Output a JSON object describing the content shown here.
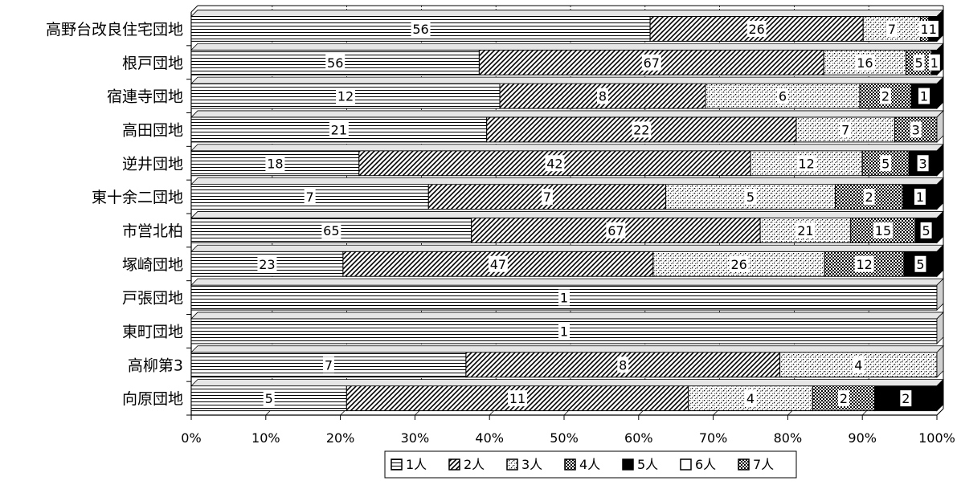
{
  "chart_data": {
    "type": "bar",
    "orientation": "horizontal",
    "stacked": "percent",
    "categories": [
      "高野台改良住宅団地",
      "根戸団地",
      "宿連寺団地",
      "高田団地",
      "逆井団地",
      "東十余二団地",
      "市営北柏",
      "塚崎団地",
      "戸張団地",
      "東町団地",
      "高柳第3",
      "向原団地"
    ],
    "series": [
      {
        "name": "1人",
        "values": [
          56,
          56,
          12,
          21,
          18,
          7,
          65,
          23,
          1,
          1,
          7,
          5
        ]
      },
      {
        "name": "2人",
        "values": [
          26,
          67,
          8,
          22,
          42,
          7,
          67,
          47,
          0,
          0,
          8,
          11
        ]
      },
      {
        "name": "3人",
        "values": [
          7,
          16,
          6,
          7,
          12,
          5,
          21,
          26,
          0,
          0,
          4,
          4
        ]
      },
      {
        "name": "4人",
        "values": [
          1,
          5,
          2,
          3,
          5,
          2,
          15,
          12,
          0,
          0,
          0,
          2
        ]
      },
      {
        "name": "5人",
        "values": [
          1,
          1,
          1,
          0,
          3,
          1,
          5,
          5,
          0,
          0,
          0,
          2
        ]
      },
      {
        "name": "6人",
        "values": [
          0,
          0,
          0,
          0,
          0,
          0,
          0,
          0,
          0,
          0,
          0,
          0
        ]
      },
      {
        "name": "7人",
        "values": [
          0,
          0,
          0,
          0,
          0,
          0,
          0,
          0,
          0,
          0,
          0,
          0
        ]
      }
    ],
    "x_ticks": [
      "0%",
      "10%",
      "20%",
      "30%",
      "40%",
      "50%",
      "60%",
      "70%",
      "80%",
      "90%",
      "100%"
    ],
    "xlim": [
      0,
      100
    ],
    "grid": true,
    "legend": "bottom"
  }
}
